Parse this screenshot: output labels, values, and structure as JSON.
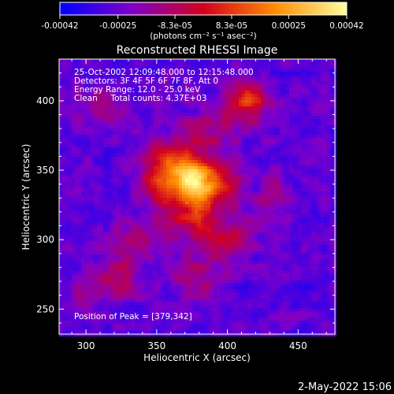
{
  "chart_data": {
    "type": "heatmap",
    "title": "Reconstructed RHESSI Image",
    "xlabel": "Heliocentric X (arcsec)",
    "ylabel": "Heliocentric Y (arcsec)",
    "xlim": [
      281,
      476
    ],
    "ylim": [
      232,
      430
    ],
    "x_ticks": [
      "300",
      "350",
      "400",
      "450"
    ],
    "y_ticks": [
      "250",
      "300",
      "350",
      "400"
    ],
    "colorbar": {
      "range": [
        -0.00042,
        0.00042
      ],
      "tick_labels": [
        "-0.00042",
        "-0.00025",
        "-8.3e-05",
        "8.3e-05",
        "0.00025",
        "0.00042"
      ],
      "units_label": "(photons cm⁻² s⁻¹ asec⁻²)",
      "colors": [
        "#0000ff",
        "#7f00c8",
        "#d2001e",
        "#ff8c00",
        "#ffff9b"
      ]
    },
    "annotations": {
      "time_range": "25-Oct-2002 12:09:48.000 to 12:15:48.000",
      "detectors": "Detectors: 3F 4F 5F 6F 7F 8F, Att 0",
      "energy_range": "Energy Range: 12.0 - 25.0 keV",
      "method_counts": "Clean     Total counts: 4.37E+03",
      "peak_position": "Position of Peak = [379,342]"
    },
    "peak": {
      "x": 379,
      "y": 342
    },
    "timestamp": "2-May-2022 15:06"
  }
}
